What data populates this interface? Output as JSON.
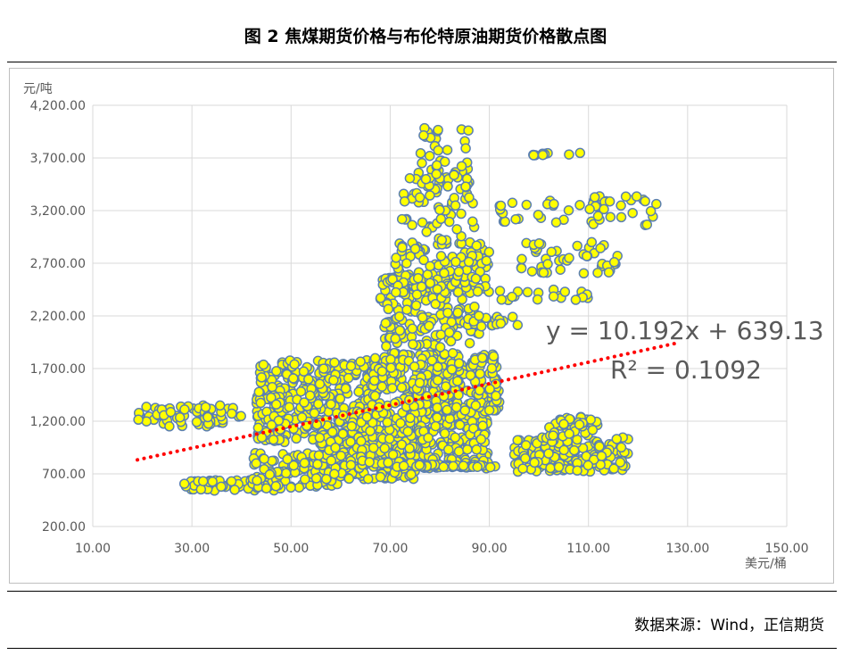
{
  "title": "图 2   焦煤期货价格与布伦特原油期货价格散点图",
  "source": "数据来源：Wind，正信期货",
  "chart_data": {
    "type": "scatter",
    "title": "图 2   焦煤期货价格与布伦特原油期货价格散点图",
    "xlabel": "美元/桶",
    "ylabel": "元/吨",
    "xlim": [
      10,
      150
    ],
    "ylim": [
      200,
      4200
    ],
    "xticks": [
      "10.00",
      "30.00",
      "50.00",
      "70.00",
      "90.00",
      "110.00",
      "130.00",
      "150.00"
    ],
    "yticks": [
      "200.00",
      "700.00",
      "1,200.00",
      "1,700.00",
      "2,200.00",
      "2,700.00",
      "3,200.00",
      "3,700.00",
      "4,200.00"
    ],
    "grid": true,
    "marker_fill": "#ffff00",
    "marker_edge": "#5b7fb1",
    "trendline_color": "#ff0000",
    "trendline": {
      "slope": 10.192,
      "intercept": 639.13,
      "x_range": [
        19,
        128
      ],
      "equation": "y = 10.192x + 639.13",
      "r2": "R² = 0.1092"
    },
    "clusters": [
      {
        "xr": [
          19,
          40
        ],
        "yr": [
          1150,
          1350
        ],
        "n": 70
      },
      {
        "xr": [
          28,
          47
        ],
        "yr": [
          540,
          640
        ],
        "n": 60
      },
      {
        "xr": [
          42,
          60
        ],
        "yr": [
          560,
          900
        ],
        "n": 110
      },
      {
        "xr": [
          43,
          68
        ],
        "yr": [
          1000,
          1780
        ],
        "n": 420
      },
      {
        "xr": [
          55,
          75
        ],
        "yr": [
          650,
          1100
        ],
        "n": 190
      },
      {
        "xr": [
          62,
          90
        ],
        "yr": [
          750,
          1300
        ],
        "n": 330
      },
      {
        "xr": [
          66,
          92
        ],
        "yr": [
          1300,
          1850
        ],
        "n": 300
      },
      {
        "xr": [
          68,
          88
        ],
        "yr": [
          1900,
          2600
        ],
        "n": 180
      },
      {
        "xr": [
          70,
          90
        ],
        "yr": [
          2400,
          2900
        ],
        "n": 120
      },
      {
        "xr": [
          72,
          87
        ],
        "yr": [
          2900,
          3600
        ],
        "n": 60
      },
      {
        "xr": [
          76,
          86
        ],
        "yr": [
          3400,
          4000
        ],
        "n": 40
      },
      {
        "xr": [
          75,
          92
        ],
        "yr": [
          760,
          790
        ],
        "n": 40
      },
      {
        "xr": [
          85,
          96
        ],
        "yr": [
          2100,
          2200
        ],
        "n": 20
      },
      {
        "xr": [
          92,
          110
        ],
        "yr": [
          2350,
          2450
        ],
        "n": 20
      },
      {
        "xr": [
          92,
          124
        ],
        "yr": [
          3050,
          3350
        ],
        "n": 50
      },
      {
        "xr": [
          96,
          116
        ],
        "yr": [
          2600,
          2900
        ],
        "n": 45
      },
      {
        "xr": [
          98,
          110
        ],
        "yr": [
          3720,
          3760
        ],
        "n": 10
      },
      {
        "xr": [
          95,
          118
        ],
        "yr": [
          720,
          1050
        ],
        "n": 170
      },
      {
        "xr": [
          102,
          112
        ],
        "yr": [
          1050,
          1250
        ],
        "n": 40
      }
    ]
  }
}
